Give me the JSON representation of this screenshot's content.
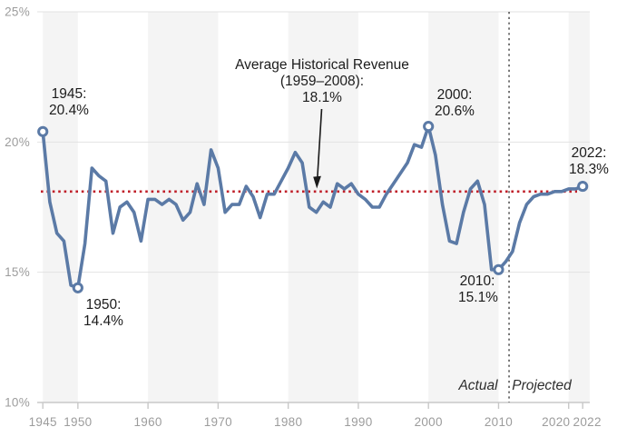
{
  "page": {
    "background": "#ffffff"
  },
  "chart_data": {
    "type": "line",
    "x_domain": [
      1945,
      2022
    ],
    "ylim": [
      10,
      25
    ],
    "grid": "horizontal-only",
    "y_ticks": [
      {
        "value": 25,
        "label": "25%"
      },
      {
        "value": 20,
        "label": "20%"
      },
      {
        "value": 15,
        "label": "15%"
      },
      {
        "value": 10,
        "label": "10%"
      }
    ],
    "x_ticks": [
      {
        "year": 1945,
        "label": "1945"
      },
      {
        "year": 1950,
        "label": "1950"
      },
      {
        "year": 1960,
        "label": "1960"
      },
      {
        "year": 1970,
        "label": "1970"
      },
      {
        "year": 1980,
        "label": "1980"
      },
      {
        "year": 1990,
        "label": "1990"
      },
      {
        "year": 2000,
        "label": "2000"
      },
      {
        "year": 2010,
        "label": "2010"
      },
      {
        "year": 2020,
        "label": "2020"
      },
      {
        "year": 2022,
        "label": "2022"
      }
    ],
    "decade_bands": [
      [
        1945,
        1950
      ],
      [
        1960,
        1970
      ],
      [
        1980,
        1990
      ],
      [
        2000,
        2010
      ],
      [
        2020,
        2023
      ]
    ],
    "average_line": {
      "value": 18.1,
      "label": "Average Historical Revenue (1959–2008): 18.1%"
    },
    "divider": {
      "year": 2011.5,
      "left_label": "Actual",
      "right_label": "Projected"
    },
    "series": [
      {
        "name": "Actual",
        "start_year": 1945,
        "values": [
          20.4,
          17.7,
          16.5,
          16.2,
          14.5,
          14.4,
          16.1,
          19.0,
          18.7,
          18.5,
          16.5,
          17.5,
          17.7,
          17.3,
          16.2,
          17.8,
          17.8,
          17.6,
          17.8,
          17.6,
          17.0,
          17.3,
          18.4,
          17.6,
          19.7,
          19.0,
          17.3,
          17.6,
          17.6,
          18.3,
          17.9,
          17.1,
          18.0,
          18.0,
          18.5,
          19.0,
          19.6,
          19.2,
          17.5,
          17.3,
          17.7,
          17.5,
          18.4,
          18.2,
          18.4,
          18.0,
          17.8,
          17.5,
          17.5,
          18.0,
          18.4,
          18.8,
          19.2,
          19.9,
          19.8,
          20.6,
          19.5,
          17.6,
          16.2,
          16.1,
          17.3,
          18.2,
          18.5,
          17.6,
          15.1,
          15.1,
          15.4
        ]
      },
      {
        "name": "Projected",
        "start_year": 2012,
        "values": [
          15.8,
          16.9,
          17.6,
          17.9,
          18.0,
          18.0,
          18.1,
          18.1,
          18.2,
          18.2,
          18.3
        ]
      }
    ],
    "markers": [
      {
        "year": 1945,
        "value": 20.4
      },
      {
        "year": 1950,
        "value": 14.4
      },
      {
        "year": 2000,
        "value": 20.6
      },
      {
        "year": 2010,
        "value": 15.1
      },
      {
        "year": 2022,
        "value": 18.3
      }
    ],
    "colors": {
      "line": "#5b7aa6",
      "marker_fill": "#ffffff",
      "average": "#c0202a",
      "divider": "#6a6a6a",
      "band": "#f4f4f4",
      "grid": "#e2e2e2",
      "axis": "#c8c8c8",
      "axis_text": "#9c9c9c",
      "annotation_text": "#1c1c1c"
    }
  },
  "annotations": {
    "pt1945": {
      "line1": "1945:",
      "line2": "20.4%"
    },
    "pt1950": {
      "line1": "1950:",
      "line2": "14.4%"
    },
    "average": {
      "line1": "Average Historical Revenue",
      "line2": "(1959–2008):",
      "line3": "18.1%"
    },
    "pt2000": {
      "line1": "2000:",
      "line2": "20.6%"
    },
    "pt2010": {
      "line1": "2010:",
      "line2": "15.1%"
    },
    "pt2022": {
      "line1": "2022:",
      "line2": "18.3%"
    },
    "actual_label": "Actual",
    "projected_label": "Projected"
  }
}
